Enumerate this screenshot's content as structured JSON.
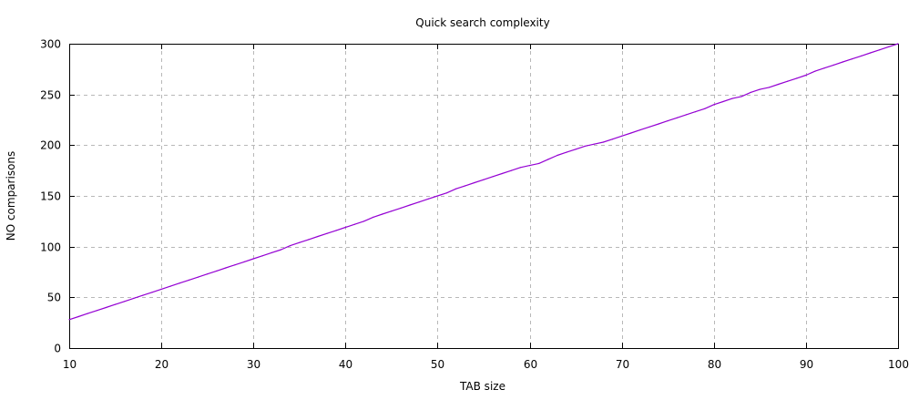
{
  "chart_data": {
    "type": "line",
    "title": "Quick search complexity",
    "xlabel": "TAB size",
    "ylabel": "NO comparisons",
    "xlim": [
      10,
      100
    ],
    "ylim": [
      0,
      300
    ],
    "x_ticks": [
      "10",
      "20",
      "30",
      "40",
      "50",
      "60",
      "70",
      "80",
      "90",
      "100"
    ],
    "y_ticks": [
      "0",
      "50",
      "100",
      "150",
      "200",
      "250",
      "300"
    ],
    "grid": true,
    "line_color": "#9400d3",
    "series": [
      {
        "x": [
          10,
          11,
          12,
          13,
          14,
          15,
          16,
          17,
          18,
          19,
          20,
          21,
          22,
          23,
          24,
          25,
          26,
          27,
          28,
          29,
          30,
          31,
          32,
          33,
          34,
          35,
          36,
          37,
          38,
          39,
          40,
          41,
          42,
          43,
          44,
          45,
          46,
          47,
          48,
          49,
          50,
          51,
          52,
          53,
          54,
          55,
          56,
          57,
          58,
          59,
          60,
          61,
          62,
          63,
          64,
          65,
          66,
          67,
          68,
          69,
          70,
          71,
          72,
          73,
          74,
          75,
          76,
          77,
          78,
          79,
          80,
          81,
          82,
          83,
          84,
          85,
          86,
          87,
          88,
          89,
          90,
          91,
          92,
          93,
          94,
          95,
          96,
          97,
          98,
          99,
          100
        ],
        "y": [
          28,
          31,
          34,
          37,
          40,
          43,
          46,
          49,
          52,
          55,
          58,
          61,
          64,
          67,
          70,
          73,
          76,
          79,
          82,
          85,
          88,
          91,
          94,
          97,
          101,
          104,
          107,
          110,
          113,
          116,
          119,
          122,
          125,
          129,
          132,
          135,
          138,
          141,
          144,
          147,
          150,
          153,
          157,
          160,
          163,
          166,
          169,
          172,
          175,
          178,
          180,
          182,
          186,
          190,
          193,
          196,
          199,
          201,
          203,
          206,
          209,
          212,
          215,
          218,
          221,
          224,
          227,
          230,
          233,
          236,
          240,
          243,
          246,
          248,
          252,
          255,
          257,
          260,
          263,
          266,
          269,
          273,
          276,
          279,
          282,
          285,
          288,
          291,
          294,
          297,
          300
        ]
      }
    ]
  }
}
